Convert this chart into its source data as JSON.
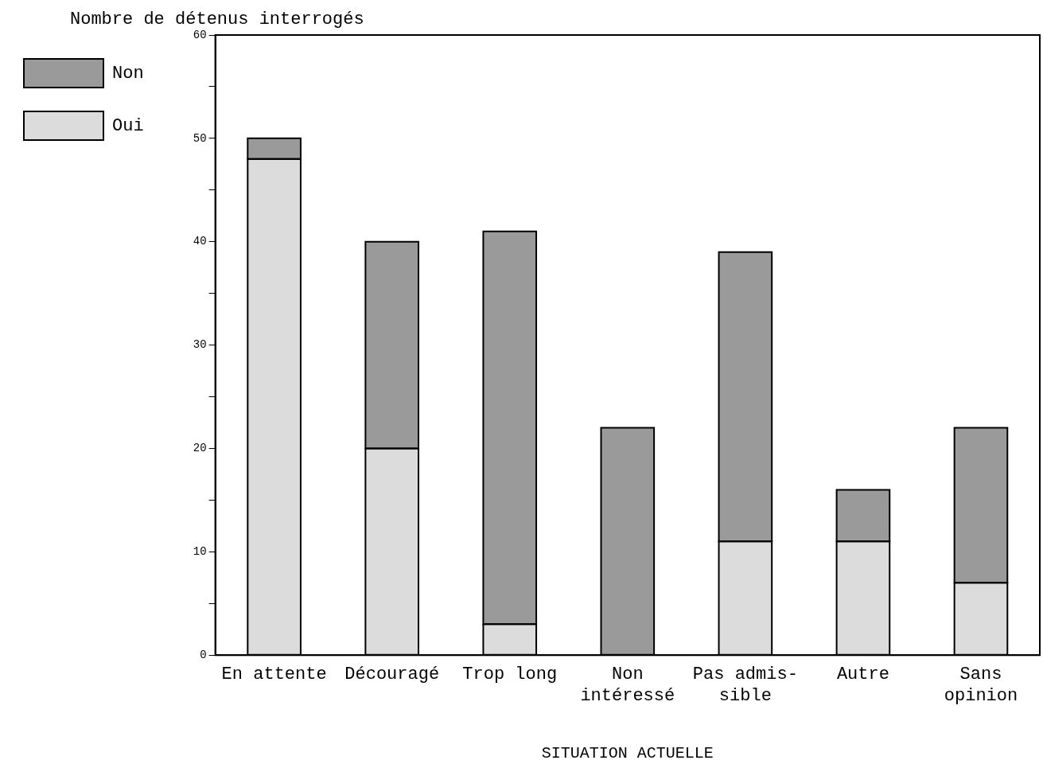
{
  "chart_data": {
    "type": "bar",
    "stacked": true,
    "ylabel": "Nombre de détenus interrogés",
    "xlabel": "SITUATION ACTUELLE",
    "categories": [
      "En attente",
      "Découragé",
      "Trop long",
      "Non\nintéressé",
      "Pas admis-\nsible",
      "Autre",
      "Sans\nopinion"
    ],
    "series": [
      {
        "name": "Oui",
        "color": "#dcdcdc",
        "values": [
          48,
          20,
          3,
          0,
          11,
          11,
          7
        ]
      },
      {
        "name": "Non",
        "color": "#9a9a9a",
        "values": [
          2,
          20,
          38,
          22,
          28,
          5,
          15
        ]
      }
    ],
    "ylim": [
      0,
      60
    ],
    "yticks": [
      0,
      {
        "value": 5,
        "label": null
      },
      10,
      {
        "value": 15,
        "label": null
      },
      20,
      {
        "value": 25,
        "label": null
      },
      30,
      {
        "value": 35,
        "label": null
      },
      40,
      {
        "value": 45,
        "label": null
      },
      50,
      {
        "value": 55,
        "label": null
      },
      60
    ],
    "grid": false,
    "legend": "left"
  }
}
